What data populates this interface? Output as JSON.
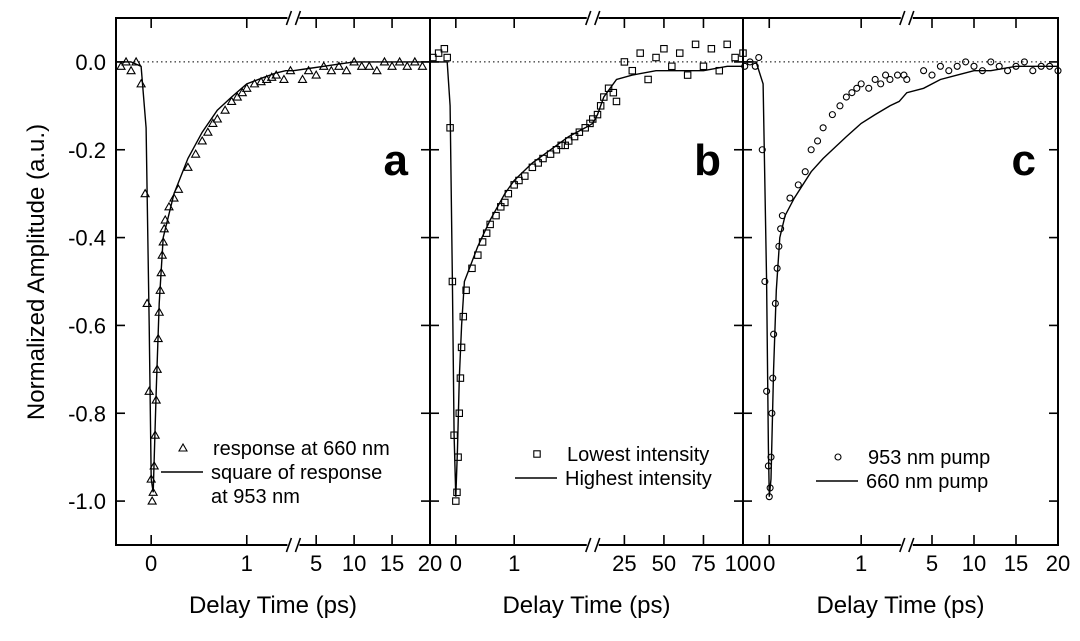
{
  "figure": {
    "ylabel": "Normalized Amplitude (a.u.)",
    "ylim": [
      -1.1,
      0.1
    ],
    "yticks": [
      0.0,
      -0.2,
      -0.4,
      -0.6,
      -0.8,
      -1.0
    ],
    "ytick_labels": [
      "0.0",
      "-0.2",
      "-0.4",
      "-0.6",
      "-0.8",
      "-1.0"
    ],
    "zero_reference_line": "dotted"
  },
  "chart_data": [
    {
      "type": "scatter",
      "panel": "a",
      "panel_label": "a",
      "xlabel": "Delay Time (ps)",
      "ylabel": "Normalized Amplitude (a.u.)",
      "ylim": [
        -1.1,
        0.1
      ],
      "x_axis": {
        "segments": [
          {
            "scale": "linear",
            "range": [
              -0.35,
              0.15
            ],
            "span": [
              0.0,
              0.16
            ]
          },
          {
            "scale": "log",
            "range": [
              0.15,
              3.0
            ],
            "span": [
              0.16,
              0.565
            ]
          },
          {
            "scale": "linear",
            "range": [
              2.0,
              20.0
            ],
            "span": [
              0.565,
              1.0
            ]
          }
        ],
        "ticks": [
          0,
          1,
          5,
          10,
          15,
          20
        ],
        "tick_labels": [
          "0",
          "1",
          "5",
          "10",
          "15",
          "20"
        ],
        "break_at": 3.0
      },
      "series": [
        {
          "name": "response at 660 nm",
          "marker": "triangle",
          "style": "markers",
          "x": [
            -0.3,
            -0.25,
            -0.2,
            -0.15,
            -0.1,
            -0.06,
            -0.04,
            -0.02,
            0.0,
            0.01,
            0.02,
            0.03,
            0.04,
            0.05,
            0.06,
            0.07,
            0.08,
            0.09,
            0.1,
            0.11,
            0.12,
            0.13,
            0.14,
            0.16,
            0.18,
            0.2,
            0.25,
            0.3,
            0.35,
            0.4,
            0.45,
            0.5,
            0.6,
            0.7,
            0.8,
            0.9,
            1.0,
            1.2,
            1.4,
            1.6,
            1.8,
            2.0,
            2.4,
            2.8,
            3.2,
            4,
            5,
            6,
            7,
            8,
            9,
            10,
            11,
            12,
            13,
            14,
            15,
            16,
            17,
            18,
            19
          ],
          "y": [
            -0.01,
            0.0,
            -0.02,
            0.0,
            -0.05,
            -0.3,
            -0.55,
            -0.75,
            -0.95,
            -1.0,
            -0.98,
            -0.92,
            -0.85,
            -0.77,
            -0.7,
            -0.63,
            -0.57,
            -0.52,
            -0.48,
            -0.44,
            -0.41,
            -0.38,
            -0.36,
            -0.33,
            -0.31,
            -0.29,
            -0.24,
            -0.21,
            -0.18,
            -0.16,
            -0.14,
            -0.13,
            -0.11,
            -0.09,
            -0.08,
            -0.07,
            -0.06,
            -0.05,
            -0.045,
            -0.04,
            -0.035,
            -0.03,
            -0.04,
            -0.02,
            -0.04,
            -0.02,
            -0.03,
            -0.01,
            -0.02,
            -0.01,
            -0.02,
            0.0,
            -0.01,
            -0.01,
            -0.02,
            0.0,
            -0.01,
            0.0,
            -0.01,
            0.0,
            -0.01
          ]
        },
        {
          "name": "square of response at 953 nm",
          "style": "line",
          "x": [
            -0.35,
            -0.2,
            -0.1,
            -0.05,
            -0.02,
            0.0,
            0.02,
            0.05,
            0.08,
            0.12,
            0.18,
            0.25,
            0.35,
            0.5,
            0.7,
            1.0,
            1.5,
            2.0,
            2.5,
            3.0,
            4,
            6,
            8,
            10,
            15,
            20
          ],
          "y": [
            0.0,
            0.0,
            -0.01,
            -0.15,
            -0.6,
            -0.95,
            -0.98,
            -0.75,
            -0.55,
            -0.4,
            -0.3,
            -0.22,
            -0.16,
            -0.11,
            -0.08,
            -0.05,
            -0.035,
            -0.025,
            -0.02,
            -0.02,
            -0.015,
            -0.01,
            -0.005,
            0.0,
            0.0,
            0.0
          ]
        }
      ],
      "legend": {
        "placement": "bottom-right",
        "entries": [
          {
            "marker": "triangle",
            "lines": [
              "response at 660 nm"
            ]
          },
          {
            "marker": "line",
            "lines": [
              "square of response",
              "at 953 nm"
            ]
          }
        ]
      }
    },
    {
      "type": "scatter",
      "panel": "b",
      "panel_label": "b",
      "xlabel": "Delay Time (ps)",
      "ylabel": "Normalized Amplitude (a.u.)",
      "ylim": [
        -1.1,
        0.1
      ],
      "x_axis": {
        "segments": [
          {
            "scale": "linear",
            "range": [
              -0.45,
              0.15
            ],
            "span": [
              0.0,
              0.11
            ]
          },
          {
            "scale": "log",
            "range": [
              0.15,
              20.0
            ],
            "span": [
              0.11,
              0.52
            ]
          },
          {
            "scale": "linear",
            "range": [
              5.0,
              100.0
            ],
            "span": [
              0.52,
              1.0
            ]
          }
        ],
        "ticks": [
          0,
          1,
          25,
          50,
          75,
          100
        ],
        "tick_labels": [
          "0",
          "1",
          "25",
          "50",
          "75",
          "100"
        ],
        "break_at": 20.0
      },
      "series": [
        {
          "name": "Lowest intensity",
          "marker": "square",
          "style": "markers",
          "x": [
            -0.4,
            -0.3,
            -0.2,
            -0.15,
            -0.1,
            -0.06,
            -0.03,
            0.0,
            0.02,
            0.04,
            0.06,
            0.08,
            0.1,
            0.13,
            0.16,
            0.2,
            0.25,
            0.3,
            0.35,
            0.4,
            0.5,
            0.6,
            0.7,
            0.8,
            1.0,
            1.2,
            1.5,
            2.0,
            2.5,
            3.0,
            4.0,
            5.0,
            6.0,
            7.0,
            8.0,
            10.0,
            12.0,
            15.0,
            18.0,
            20.0,
            8,
            10,
            12,
            15,
            18,
            20,
            25,
            30,
            35,
            40,
            45,
            50,
            55,
            60,
            65,
            70,
            75,
            80,
            85,
            90,
            95,
            100
          ],
          "y": [
            0.01,
            0.02,
            0.03,
            0.01,
            -0.15,
            -0.5,
            -0.85,
            -1.0,
            -0.98,
            -0.9,
            -0.8,
            -0.72,
            -0.65,
            -0.58,
            -0.52,
            -0.47,
            -0.44,
            -0.41,
            -0.39,
            -0.37,
            -0.35,
            -0.33,
            -0.32,
            -0.3,
            -0.28,
            -0.27,
            -0.26,
            -0.24,
            -0.23,
            -0.22,
            -0.21,
            -0.2,
            -0.19,
            -0.19,
            -0.18,
            -0.17,
            -0.16,
            -0.15,
            -0.14,
            -0.13,
            -0.12,
            -0.1,
            -0.08,
            -0.06,
            -0.07,
            -0.09,
            0.0,
            -0.02,
            0.02,
            -0.04,
            0.01,
            0.03,
            -0.01,
            0.02,
            -0.03,
            0.04,
            -0.01,
            0.03,
            -0.02,
            0.04,
            0.01,
            0.02
          ]
        },
        {
          "name": "Highest intensity",
          "style": "line",
          "x": [
            -0.45,
            -0.3,
            -0.15,
            -0.1,
            -0.06,
            -0.03,
            0.0,
            0.03,
            0.06,
            0.1,
            0.15,
            0.25,
            0.4,
            0.7,
            1.0,
            2.0,
            4.0,
            8.0,
            15.0,
            20.0,
            8,
            12,
            20,
            30,
            45,
            60,
            75,
            90,
            100
          ],
          "y": [
            0.0,
            0.0,
            0.0,
            -0.1,
            -0.5,
            -0.85,
            -0.99,
            -0.88,
            -0.72,
            -0.6,
            -0.5,
            -0.42,
            -0.36,
            -0.3,
            -0.27,
            -0.23,
            -0.2,
            -0.17,
            -0.15,
            -0.14,
            -0.12,
            -0.08,
            -0.04,
            -0.03,
            -0.02,
            -0.02,
            -0.02,
            -0.01,
            -0.01
          ]
        }
      ],
      "legend": {
        "placement": "bottom-right",
        "entries": [
          {
            "marker": "square",
            "lines": [
              "Lowest intensity"
            ]
          },
          {
            "marker": "line",
            "lines": [
              "Highest intensity"
            ]
          }
        ]
      }
    },
    {
      "type": "scatter",
      "panel": "c",
      "panel_label": "c",
      "xlabel": "Delay Time (ps)",
      "ylabel": "Normalized Amplitude (a.u.)",
      "ylim": [
        -1.1,
        0.1
      ],
      "x_axis": {
        "segments": [
          {
            "scale": "linear",
            "range": [
              -0.3,
              0.15
            ],
            "span": [
              0.0,
              0.125
            ]
          },
          {
            "scale": "log",
            "range": [
              0.15,
              3.0
            ],
            "span": [
              0.125,
              0.52
            ]
          },
          {
            "scale": "linear",
            "range": [
              2.0,
              20.0
            ],
            "span": [
              0.52,
              1.0
            ]
          }
        ],
        "ticks": [
          0,
          1,
          5,
          10,
          15,
          20
        ],
        "tick_labels": [
          "0",
          "1",
          "5",
          "10",
          "15",
          "20"
        ],
        "break_at": 3.0
      },
      "series": [
        {
          "name": "953 nm pump",
          "marker": "circle",
          "style": "markers",
          "x": [
            -0.28,
            -0.22,
            -0.16,
            -0.12,
            -0.08,
            -0.05,
            -0.03,
            -0.01,
            0.0,
            0.01,
            0.02,
            0.03,
            0.04,
            0.05,
            0.07,
            0.09,
            0.11,
            0.13,
            0.15,
            0.18,
            0.22,
            0.26,
            0.3,
            0.35,
            0.4,
            0.5,
            0.6,
            0.7,
            0.8,
            0.9,
            1.0,
            1.2,
            1.4,
            1.6,
            1.8,
            2.0,
            2.4,
            2.8,
            3,
            4,
            5,
            6,
            7,
            8,
            9,
            10,
            11,
            12,
            13,
            14,
            15,
            16,
            17,
            18,
            19,
            20
          ],
          "y": [
            -0.01,
            0.0,
            -0.01,
            0.01,
            -0.2,
            -0.5,
            -0.75,
            -0.92,
            -0.99,
            -0.97,
            -0.9,
            -0.8,
            -0.72,
            -0.62,
            -0.55,
            -0.47,
            -0.42,
            -0.38,
            -0.35,
            -0.31,
            -0.28,
            -0.25,
            -0.2,
            -0.18,
            -0.15,
            -0.12,
            -0.1,
            -0.08,
            -0.07,
            -0.06,
            -0.05,
            -0.06,
            -0.04,
            -0.05,
            -0.03,
            -0.04,
            -0.03,
            -0.03,
            -0.04,
            -0.02,
            -0.03,
            -0.01,
            -0.02,
            -0.01,
            0.0,
            -0.01,
            -0.02,
            0.0,
            -0.01,
            -0.02,
            -0.01,
            0.0,
            -0.02,
            -0.01,
            -0.01,
            -0.02
          ]
        },
        {
          "name": "660 nm pump",
          "style": "line",
          "x": [
            -0.3,
            -0.15,
            -0.07,
            -0.03,
            -0.01,
            0.0,
            0.02,
            0.05,
            0.08,
            0.12,
            0.16,
            0.2,
            0.3,
            0.4,
            0.5,
            0.7,
            1.0,
            1.4,
            2.0,
            2.5,
            3.0,
            4,
            6,
            8,
            10,
            12,
            15,
            18,
            20
          ],
          "y": [
            0.0,
            0.0,
            -0.05,
            -0.5,
            -0.88,
            -0.99,
            -0.95,
            -0.7,
            -0.52,
            -0.4,
            -0.35,
            -0.31,
            -0.25,
            -0.22,
            -0.2,
            -0.17,
            -0.14,
            -0.12,
            -0.1,
            -0.09,
            -0.07,
            -0.06,
            -0.04,
            -0.03,
            -0.02,
            -0.02,
            -0.01,
            -0.01,
            -0.01
          ]
        }
      ],
      "legend": {
        "placement": "bottom-right",
        "entries": [
          {
            "marker": "circle",
            "lines": [
              "953 nm pump"
            ]
          },
          {
            "marker": "line",
            "lines": [
              "660 nm pump"
            ]
          }
        ]
      }
    }
  ]
}
